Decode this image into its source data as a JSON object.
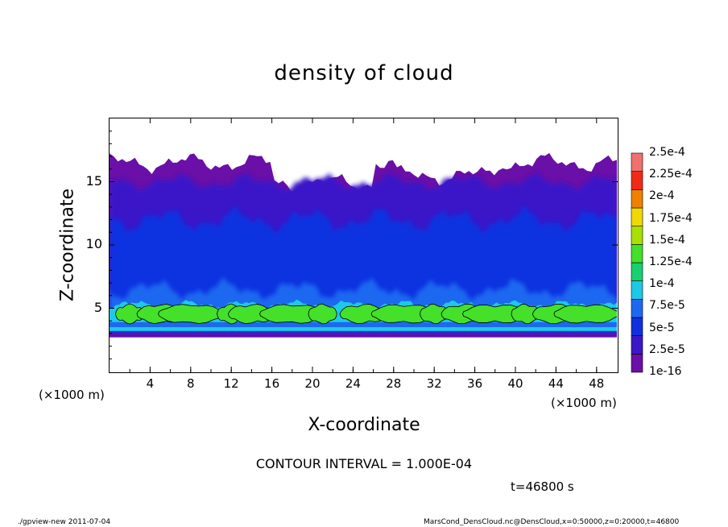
{
  "title": "density of cloud",
  "chart_data": {
    "type": "heatmap",
    "title": "density of cloud",
    "xlabel": "X-coordinate",
    "ylabel": "Z-coordinate",
    "x_unit_label": "(×1000 m)",
    "xlim": [
      0,
      50
    ],
    "ylim": [
      0,
      20
    ],
    "x_ticks": [
      "4",
      "8",
      "12",
      "16",
      "20",
      "24",
      "28",
      "32",
      "36",
      "40",
      "44",
      "48"
    ],
    "y_ticks": [
      "5",
      "10",
      "15"
    ],
    "colorbar_labels": [
      "1e-16",
      "2.5e-5",
      "5e-5",
      "7.5e-5",
      "1e-4",
      "1.25e-4",
      "1.5e-4",
      "1.75e-4",
      "2e-4",
      "2.25e-4",
      "2.5e-4"
    ],
    "colorbar_colors": [
      "#6a0fa8",
      "#3a18c8",
      "#1030e0",
      "#1e68f0",
      "#1ec8e8",
      "#18d070",
      "#44e02a",
      "#a8e000",
      "#f0d800",
      "#f08000",
      "#f02a18",
      "#f07070"
    ],
    "contour_interval": "CONTOUR INTERVAL = 1.000E-04",
    "time": "t=46800 s",
    "regions": {
      "cloud_base_km": 3.0,
      "cloud_top_km": 17.5,
      "dense_layer_km": [
        3.5,
        5.5
      ],
      "dense_layer_peak_value": 0.00015,
      "upper_layer_value": 1e-05
    }
  },
  "footer": {
    "left": "./gpview-new   2011-07-04",
    "right": "MarsCond_DensCloud.nc@DensCloud,x=0:50000,z=0:20000,t=46800"
  }
}
